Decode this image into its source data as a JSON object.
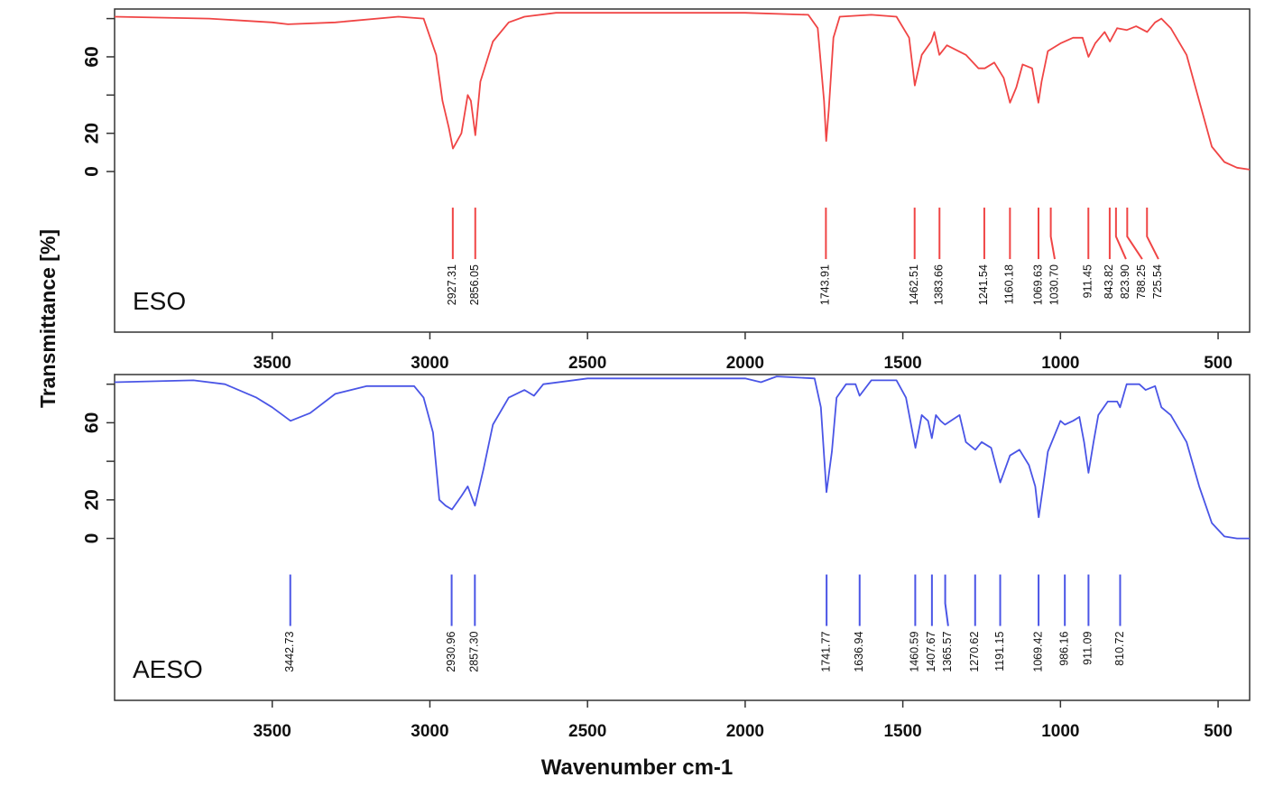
{
  "chart_data": [
    {
      "type": "line",
      "ylabel": "Transmittance [%]",
      "x": [
        4000,
        3700,
        3500,
        3450,
        3300,
        3100,
        3020,
        2980,
        2960,
        2940,
        2927,
        2900,
        2880,
        2870,
        2856,
        2840,
        2800,
        2750,
        2700,
        2600,
        2500,
        2000,
        1800,
        1770,
        1750,
        1743,
        1735,
        1720,
        1700,
        1600,
        1520,
        1480,
        1462,
        1440,
        1410,
        1400,
        1384,
        1360,
        1300,
        1260,
        1240,
        1210,
        1180,
        1160,
        1140,
        1120,
        1090,
        1070,
        1060,
        1040,
        1000,
        960,
        930,
        911,
        890,
        860,
        843,
        820,
        790,
        760,
        725,
        700,
        680,
        650,
        600,
        560,
        520,
        480,
        440,
        400
      ],
      "series": [
        {
          "name": "ESO",
          "color": "#f04545",
          "values": [
            81,
            80,
            78,
            77,
            78,
            81,
            80,
            61,
            37,
            23,
            12,
            20,
            40,
            37,
            19,
            47,
            68,
            78,
            81,
            83,
            83,
            83,
            82,
            75,
            37,
            16,
            32,
            70,
            81,
            82,
            81,
            70,
            45,
            61,
            68,
            73,
            61,
            66,
            61,
            54,
            54,
            57,
            49,
            36,
            44,
            56,
            54,
            36,
            47,
            63,
            67,
            70,
            70,
            60,
            67,
            73,
            68,
            75,
            74,
            76,
            73,
            78,
            80,
            75,
            61,
            37,
            13,
            5,
            2,
            1
          ]
        }
      ],
      "peaks": [
        {
          "value": 2927.31,
          "label": "2927.31"
        },
        {
          "value": 2856.05,
          "label": "2856.05"
        },
        {
          "value": 1743.91,
          "label": "1743.91"
        },
        {
          "value": 1462.51,
          "label": "1462.51"
        },
        {
          "value": 1383.66,
          "label": "1383.66"
        },
        {
          "value": 1241.54,
          "label": "1241.54"
        },
        {
          "value": 1160.18,
          "label": "1160.18"
        },
        {
          "value": 1069.63,
          "label": "1069.63"
        },
        {
          "value": 1030.7,
          "label": "1030.70"
        },
        {
          "value": 911.45,
          "label": "911.45"
        },
        {
          "value": 843.82,
          "label": "843.82"
        },
        {
          "value": 823.9,
          "label": "823.90"
        },
        {
          "value": 788.25,
          "label": "788.25"
        },
        {
          "value": 725.54,
          "label": "725.54"
        }
      ],
      "xlim": [
        4000,
        400
      ],
      "xticks": [
        3500,
        3000,
        2500,
        2000,
        1500,
        1000,
        500
      ],
      "ylim": [
        -84,
        85
      ],
      "yticks": [
        0,
        20,
        {
          "value": 40,
          "label": null
        },
        60,
        {
          "value": 80,
          "label": null
        }
      ]
    },
    {
      "type": "line",
      "xlabel": "Wavenumber cm-1",
      "x": [
        4000,
        3750,
        3650,
        3550,
        3500,
        3442,
        3380,
        3300,
        3200,
        3050,
        3020,
        2990,
        2970,
        2950,
        2930,
        2900,
        2880,
        2857,
        2830,
        2800,
        2750,
        2700,
        2670,
        2640,
        2500,
        2000,
        1950,
        1900,
        1780,
        1760,
        1742,
        1725,
        1710,
        1680,
        1650,
        1637,
        1600,
        1520,
        1490,
        1460,
        1440,
        1420,
        1408,
        1395,
        1380,
        1366,
        1320,
        1300,
        1270,
        1250,
        1220,
        1191,
        1160,
        1130,
        1100,
        1080,
        1069,
        1055,
        1040,
        1000,
        986,
        960,
        940,
        925,
        911,
        895,
        880,
        850,
        820,
        811,
        790,
        750,
        730,
        700,
        680,
        650,
        600,
        560,
        520,
        480,
        440,
        400
      ],
      "series": [
        {
          "name": "AESO",
          "color": "#4a55e6",
          "values": [
            81,
            82,
            80,
            73,
            68,
            61,
            65,
            75,
            79,
            79,
            73,
            55,
            20,
            17,
            15,
            22,
            27,
            17,
            36,
            59,
            73,
            77,
            74,
            80,
            83,
            83,
            81,
            84,
            83,
            68,
            24,
            45,
            73,
            80,
            80,
            74,
            82,
            82,
            73,
            47,
            64,
            61,
            52,
            64,
            61,
            59,
            64,
            50,
            46,
            50,
            47,
            29,
            43,
            46,
            38,
            27,
            11,
            27,
            45,
            61,
            59,
            61,
            63,
            50,
            34,
            50,
            64,
            71,
            71,
            68,
            80,
            80,
            77,
            79,
            68,
            64,
            50,
            27,
            8,
            1,
            0,
            0
          ]
        }
      ],
      "peaks": [
        {
          "value": 3442.73,
          "label": "3442.73"
        },
        {
          "value": 2930.96,
          "label": "2930.96"
        },
        {
          "value": 2857.3,
          "label": "2857.30"
        },
        {
          "value": 1741.77,
          "label": "1741.77"
        },
        {
          "value": 1636.94,
          "label": "1636.94"
        },
        {
          "value": 1460.59,
          "label": "1460.59"
        },
        {
          "value": 1407.67,
          "label": "1407.67"
        },
        {
          "value": 1365.57,
          "label": "1365.57"
        },
        {
          "value": 1270.62,
          "label": "1270.62"
        },
        {
          "value": 1191.15,
          "label": "1191.15"
        },
        {
          "value": 1069.42,
          "label": "1069.42"
        },
        {
          "value": 986.16,
          "label": "986.16"
        },
        {
          "value": 911.09,
          "label": "911.09"
        },
        {
          "value": 810.72,
          "label": "810.72"
        }
      ],
      "xlim": [
        4000,
        400
      ],
      "xticks": [
        3500,
        3000,
        2500,
        2000,
        1500,
        1000,
        500
      ],
      "ylim": [
        -84,
        85
      ],
      "yticks": [
        0,
        20,
        {
          "value": 40,
          "label": null
        },
        60,
        {
          "value": 80,
          "label": null
        }
      ]
    }
  ]
}
